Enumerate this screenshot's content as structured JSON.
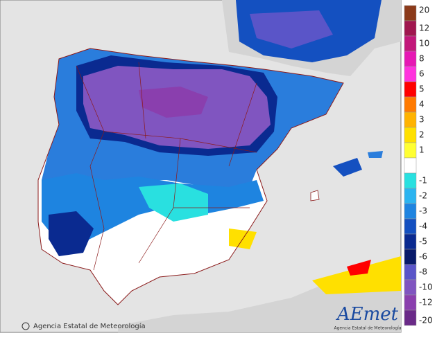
{
  "legend": {
    "values": [
      20,
      12,
      10,
      8,
      6,
      5,
      4,
      3,
      2,
      1,
      null,
      -1,
      -2,
      -3,
      -4,
      -5,
      -6,
      -8,
      -10,
      -12,
      -20
    ],
    "colors": [
      "#8b3a1a",
      "#a0174f",
      "#c2187a",
      "#e619b4",
      "#ff33dd",
      "#ff0000",
      "#ff7a00",
      "#ffb300",
      "#ffe000",
      "#ffff33",
      "#ffffff",
      "#29e0e0",
      "#2cb4f0",
      "#1e84e0",
      "#1450c0",
      "#0a2a90",
      "#081a6a",
      "#5a55c8",
      "#8055c0",
      "#8a3fae",
      "#6a2a88"
    ]
  },
  "credit": "Agencia Estatal de Meteorología",
  "logo": {
    "name": "AEmet",
    "subtitle": "Agencia Estatal de Meteorología"
  }
}
